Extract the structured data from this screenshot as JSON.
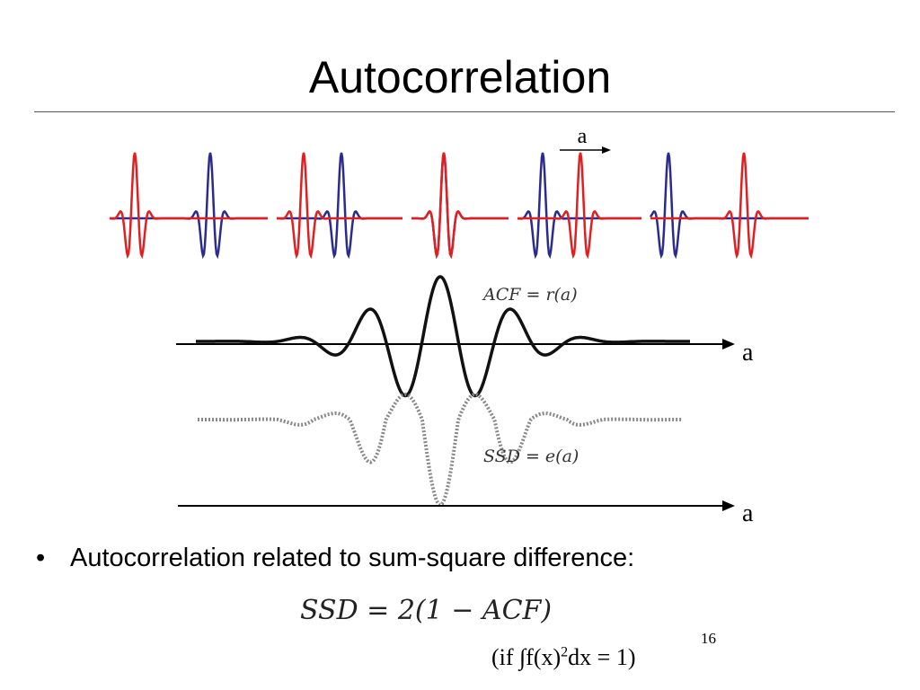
{
  "title": "Autocorrelation",
  "shift_label": "a",
  "acf_label": "ACF = r(a)",
  "ssd_label": "SSD = e(a)",
  "axis_label_acf": "a",
  "axis_label_ssd": "a",
  "bullet_text": "Autocorrelation related to sum-square difference:",
  "formula": "SSD = 2(1 − ACF)",
  "note": {
    "prefix": "(if ",
    "integral": "∫",
    "body": "f(x)",
    "exponent": "2",
    "suffix": "dx = 1)"
  },
  "page_number": "16",
  "colors": {
    "blue_signal": "#2b2b8f",
    "red_signal": "#e02020",
    "curve": "#111111",
    "ssd_curve": "#888888"
  },
  "panels": [
    {
      "name": "panel-1",
      "red_offset": -1
    },
    {
      "name": "panel-2",
      "red_offset": -0.5
    },
    {
      "name": "panel-3",
      "red_offset": 0
    },
    {
      "name": "panel-4",
      "red_offset": 0.5
    },
    {
      "name": "panel-5",
      "red_offset": 1
    }
  ]
}
